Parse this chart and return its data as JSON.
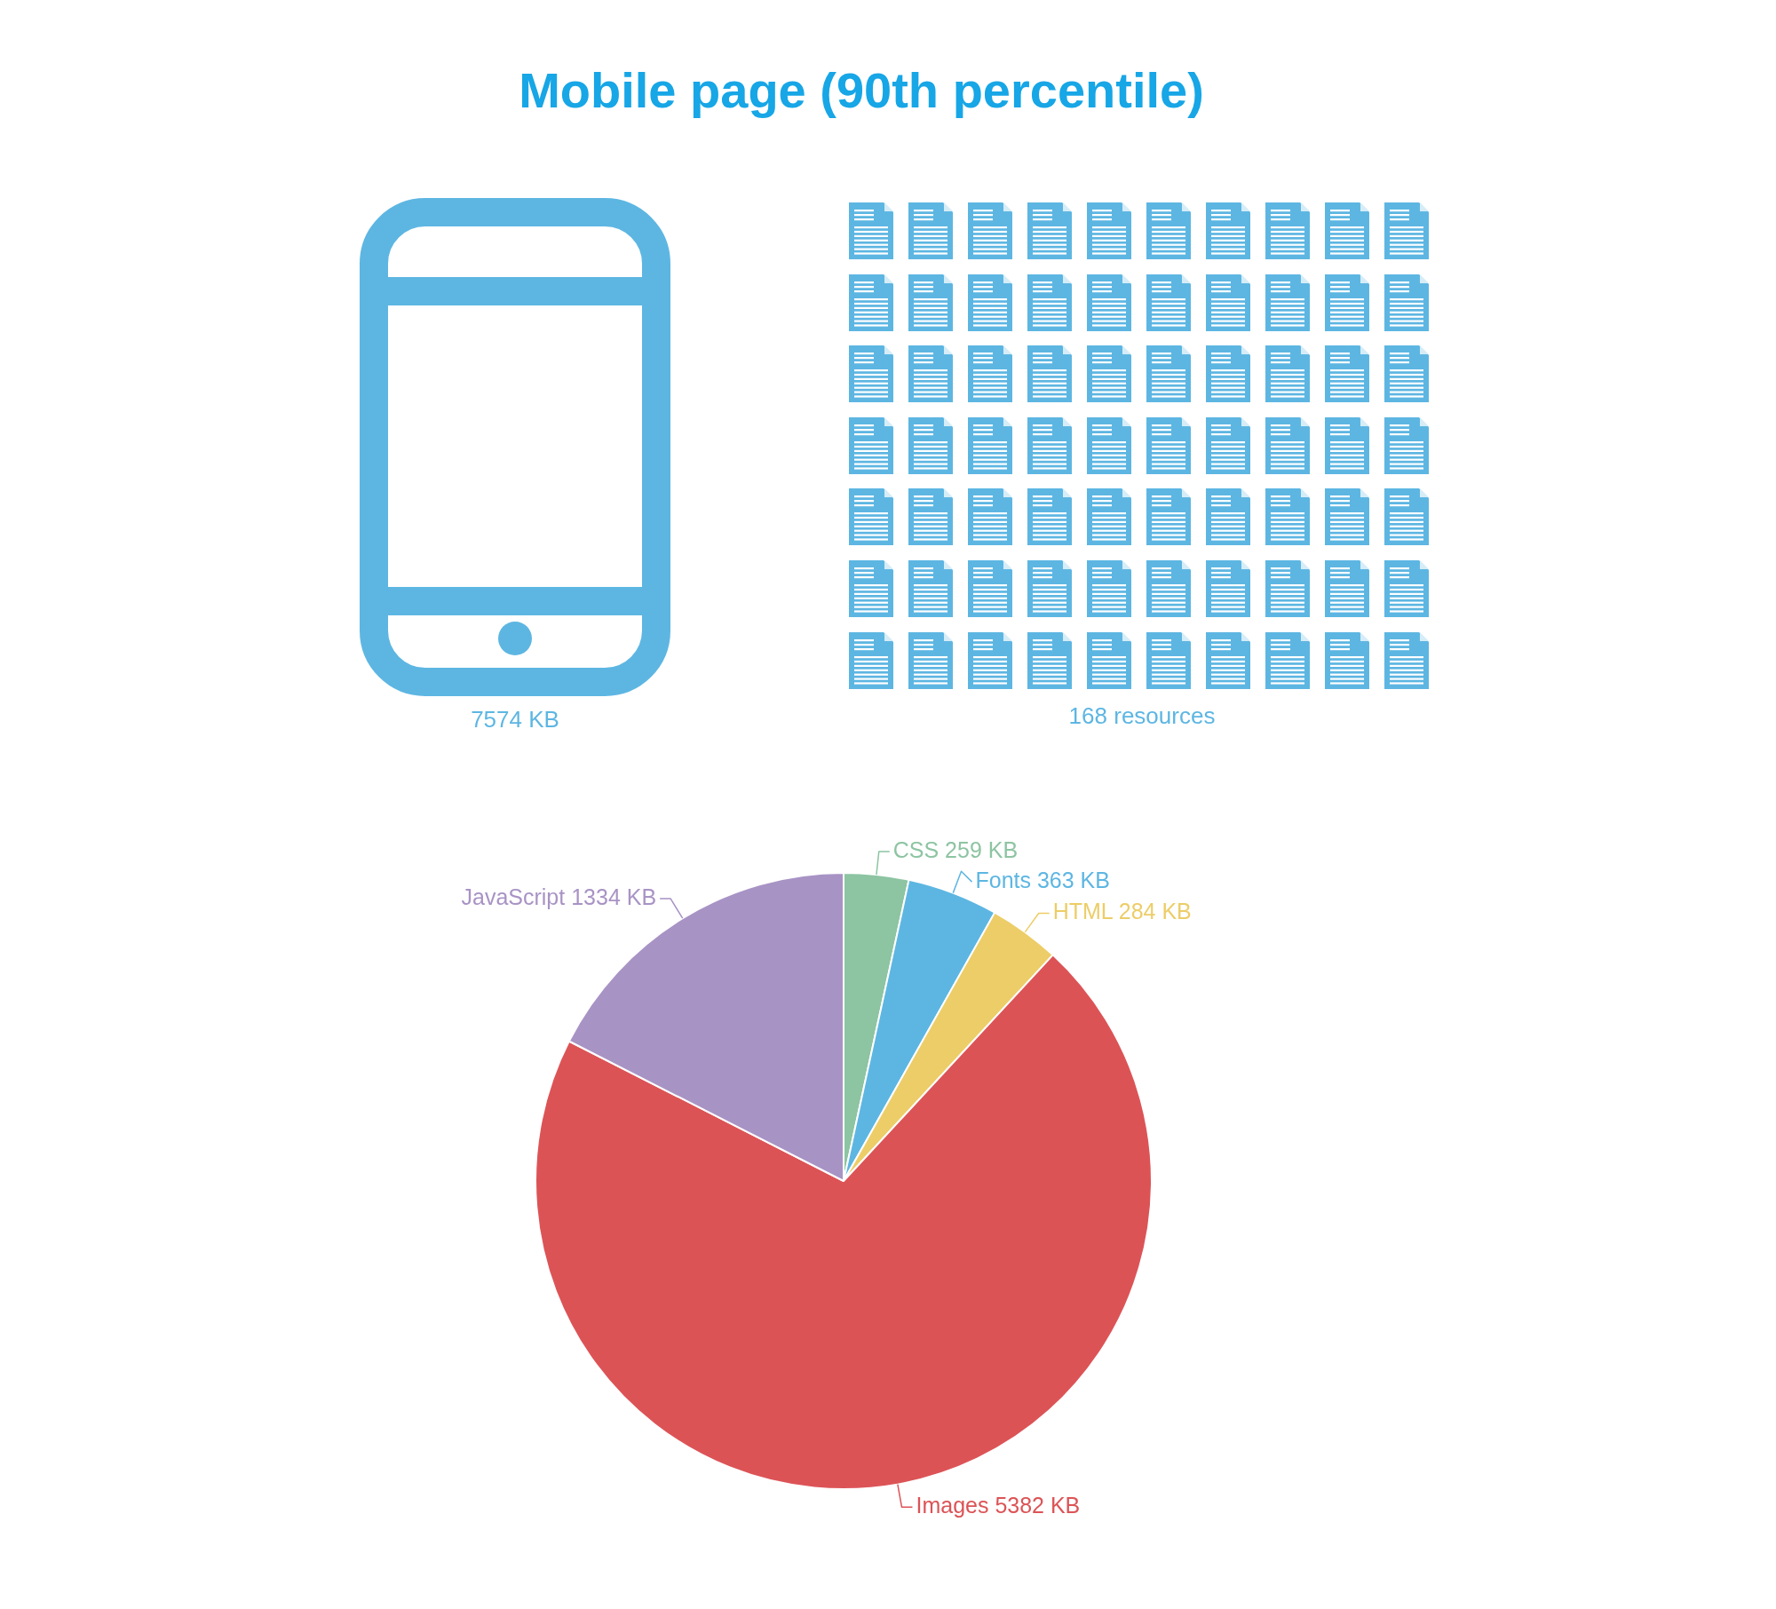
{
  "chart_data": {
    "type": "pie",
    "title": "Mobile page (90th percentile)",
    "categories": [
      "CSS",
      "Fonts",
      "HTML",
      "Images",
      "JavaScript"
    ],
    "values": [
      259,
      363,
      284,
      5382,
      1334
    ],
    "colors": [
      "#8dc4a2",
      "#5db6e2",
      "#edcd68",
      "#dc5356",
      "#a893c5"
    ],
    "value_labels": [
      "259 KB",
      "363 KB",
      "284 KB",
      "5382 KB",
      "1334 KB"
    ],
    "annotations": [
      "7574 KB",
      "168 resources"
    ]
  }
}
